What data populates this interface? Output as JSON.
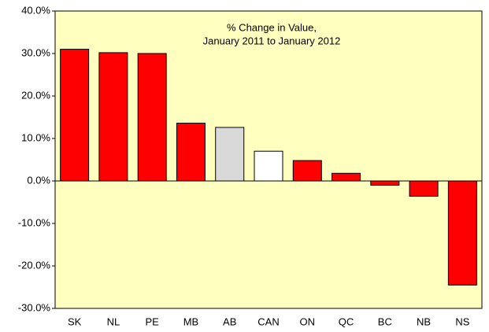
{
  "chart_data": {
    "type": "bar",
    "title": [
      "% Change in Value,",
      "January 2011  to January 2012"
    ],
    "categories": [
      "SK",
      "NL",
      "PE",
      "MB",
      "AB",
      "CAN",
      "ON",
      "QC",
      "BC",
      "NB",
      "NS"
    ],
    "values": [
      31.0,
      30.2,
      30.0,
      13.6,
      12.6,
      7.0,
      4.8,
      1.8,
      -1.0,
      -3.6,
      -24.5
    ],
    "colors": [
      "#ff0000",
      "#ff0000",
      "#ff0000",
      "#ff0000",
      "#d9d9d9",
      "#ffffff",
      "#ff0000",
      "#ff0000",
      "#ff0000",
      "#ff0000",
      "#ff0000"
    ],
    "ylim": [
      -30,
      40
    ],
    "yticks": [
      {
        "value": -30,
        "label": "-30.0%"
      },
      {
        "value": -20,
        "label": "-20.0%"
      },
      {
        "value": -10,
        "label": "-10.0%"
      },
      {
        "value": 0,
        "label": "0.0%"
      },
      {
        "value": 10,
        "label": "10.0%"
      },
      {
        "value": 20,
        "label": "20.0%"
      },
      {
        "value": 30,
        "label": "30.0%"
      },
      {
        "value": 40,
        "label": "40.0%"
      }
    ],
    "background": "#ffffc0",
    "grid": false
  }
}
